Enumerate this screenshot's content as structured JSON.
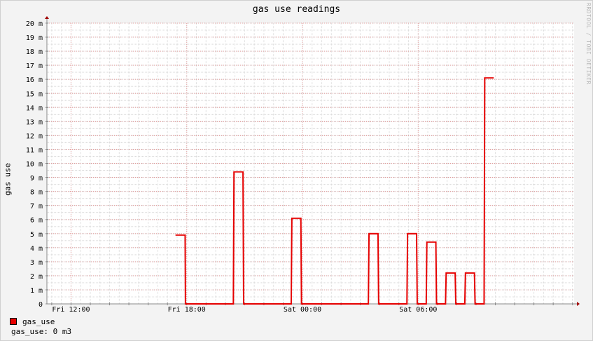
{
  "chart_data": {
    "type": "line",
    "title": "gas use readings",
    "ylabel": "gas use",
    "watermark": "RRDTOOL / TOBI OETIKER",
    "x_ticks": [
      "Fri 12:00",
      "Fri 18:00",
      "Sat 00:00",
      "Sat 06:00"
    ],
    "y_ticks": [
      "0",
      "1 m",
      "2 m",
      "3 m",
      "4 m",
      "5 m",
      "6 m",
      "7 m",
      "8 m",
      "9 m",
      "10 m",
      "11 m",
      "12 m",
      "13 m",
      "14 m",
      "15 m",
      "16 m",
      "17 m",
      "18 m",
      "19 m",
      "20 m"
    ],
    "ylim": [
      0,
      20
    ],
    "xlim": [
      "Fri 10:45",
      "Sat 14:05"
    ],
    "grid": true,
    "series": [
      {
        "name": "gas_use",
        "color": "#e60000",
        "points": [
          [
            "Fri 17:25",
            4.9
          ],
          [
            "Fri 17:55",
            4.9
          ],
          [
            "Fri 17:56",
            0
          ],
          [
            "Fri 20:25",
            0
          ],
          [
            "Fri 20:27",
            9.4
          ],
          [
            "Fri 20:55",
            9.4
          ],
          [
            "Fri 20:57",
            0
          ],
          [
            "Fri 23:25",
            0
          ],
          [
            "Fri 23:27",
            6.1
          ],
          [
            "Fri 23:55",
            6.1
          ],
          [
            "Fri 23:57",
            0
          ],
          [
            "Sat 03:25",
            0
          ],
          [
            "Sat 03:27",
            5.0
          ],
          [
            "Sat 03:55",
            5.0
          ],
          [
            "Sat 03:57",
            0
          ],
          [
            "Sat 05:25",
            0
          ],
          [
            "Sat 05:27",
            5.0
          ],
          [
            "Sat 05:55",
            5.0
          ],
          [
            "Sat 05:57",
            0
          ],
          [
            "Sat 06:25",
            0
          ],
          [
            "Sat 06:27",
            4.4
          ],
          [
            "Sat 06:55",
            4.4
          ],
          [
            "Sat 06:57",
            0
          ],
          [
            "Sat 07:25",
            0
          ],
          [
            "Sat 07:27",
            2.2
          ],
          [
            "Sat 07:55",
            2.2
          ],
          [
            "Sat 07:57",
            0
          ],
          [
            "Sat 08:25",
            0
          ],
          [
            "Sat 08:27",
            2.2
          ],
          [
            "Sat 08:55",
            2.2
          ],
          [
            "Sat 08:57",
            0
          ],
          [
            "Sat 09:25",
            0
          ],
          [
            "Sat 09:27",
            16.1
          ],
          [
            "Sat 09:55",
            16.1
          ]
        ]
      }
    ],
    "legend": {
      "entry": "gas_use",
      "stat": "gas_use: 0 m3"
    }
  }
}
